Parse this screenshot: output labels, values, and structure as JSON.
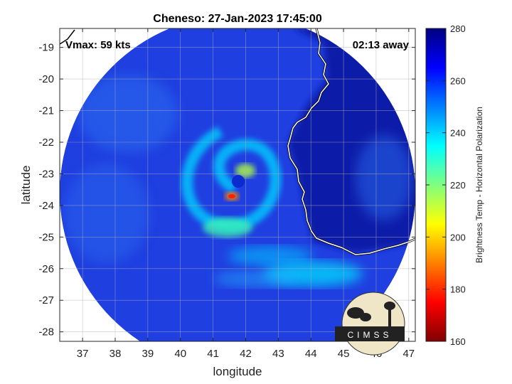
{
  "chart_data": {
    "type": "heatmap",
    "title": "Cheneso: 27-Jan-2023 17:45:00",
    "xlabel": "longitude",
    "ylabel": "latitude",
    "xlim": [
      36.3,
      47.2
    ],
    "ylim": [
      -28.3,
      -18.4
    ],
    "xticks": [
      37,
      38,
      39,
      40,
      41,
      42,
      43,
      44,
      45,
      46,
      47
    ],
    "yticks": [
      -19,
      -20,
      -21,
      -22,
      -23,
      -24,
      -25,
      -26,
      -27,
      -28
    ],
    "grid": true,
    "annotations": {
      "vmax": "Vmax: 59 kts",
      "time_away": "02:13 away"
    },
    "colorbar": {
      "label": "Brightness Temp - Horizontal Polarization",
      "range": [
        160,
        280
      ],
      "ticks": [
        160,
        180,
        200,
        220,
        240,
        260,
        280
      ],
      "colormap": "jet"
    },
    "storm_center": {
      "lon": 41.7,
      "lat": -23.6
    },
    "logo_text": "CIMSS"
  }
}
